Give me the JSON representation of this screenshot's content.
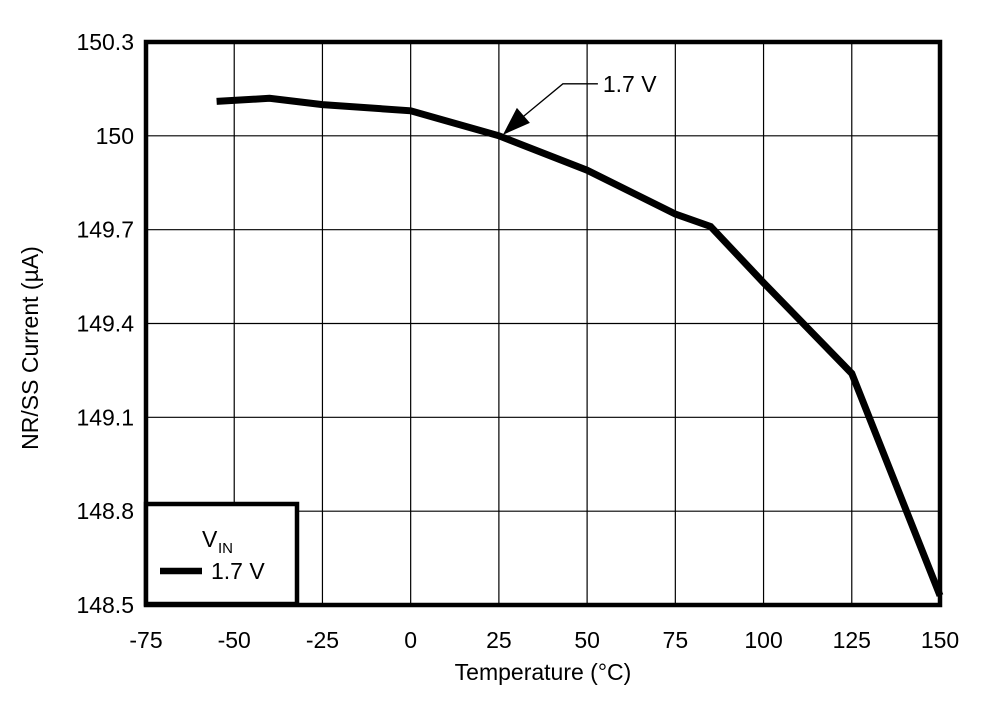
{
  "chart_data": {
    "type": "line",
    "title": "",
    "xlabel": "Temperature (°C)",
    "ylabel": "NR/SS Current (µA)",
    "xlim": [
      -75,
      150
    ],
    "ylim": [
      148.5,
      150.3
    ],
    "grid": true,
    "x_tick_values": [
      -75,
      -50,
      -25,
      0,
      25,
      50,
      75,
      100,
      125,
      150
    ],
    "x_tick_labels": [
      "-75",
      "-50",
      "-25",
      "0",
      "25",
      "50",
      "75",
      "100",
      "125",
      "150"
    ],
    "y_tick_values": [
      148.5,
      148.8,
      149.1,
      149.4,
      149.7,
      150,
      150.3
    ],
    "y_tick_labels": [
      "148.5",
      "148.8",
      "149.1",
      "149.4",
      "149.7",
      "150",
      "150.3"
    ],
    "series": [
      {
        "name": "1.7 V",
        "color": "#000000",
        "x": [
          -55,
          -40,
          -25,
          0,
          25,
          50,
          75,
          85,
          100,
          125,
          150
        ],
        "y": [
          150.11,
          150.12,
          150.1,
          150.08,
          150.0,
          149.89,
          149.75,
          149.71,
          149.53,
          149.24,
          148.53
        ]
      }
    ],
    "annotation": {
      "label": "1.7 V",
      "x": 25,
      "y": 150.0
    },
    "legend": {
      "position": "lower-left",
      "title_main": "V",
      "title_sub": "IN",
      "entries": [
        {
          "label": "1.7 V",
          "color": "#000000"
        }
      ]
    }
  },
  "colors": {
    "background": "#ffffff",
    "line": "#000000",
    "grid": "#000000",
    "border": "#000000",
    "text": "#000000"
  }
}
